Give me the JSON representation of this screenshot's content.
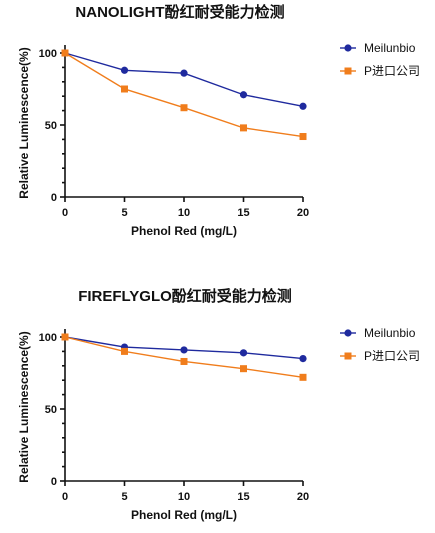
{
  "chart_data": [
    {
      "type": "line",
      "title": "NANOLIGHT酚红耐受能力检测",
      "xlabel": "Phenol Red (mg/L)",
      "ylabel": "Relative Luminescence(%)",
      "x": [
        0,
        5,
        10,
        15,
        20
      ],
      "xlim": [
        0,
        20
      ],
      "ylim": [
        0,
        100
      ],
      "xticks": [
        "0",
        "5",
        "10",
        "15",
        "20"
      ],
      "yticks": [
        "0",
        "50",
        "100"
      ],
      "grid": false,
      "legend_position": "right",
      "series": [
        {
          "name": "Meilunbio",
          "values": [
            100,
            88,
            86,
            71,
            63
          ],
          "color": "#1f2a9e",
          "marker": "circle"
        },
        {
          "name": "P进口公司",
          "values": [
            100,
            75,
            62,
            48,
            42
          ],
          "color": "#f07d1c",
          "marker": "square"
        }
      ]
    },
    {
      "type": "line",
      "title": "FIREFLYGLO酚红耐受能力检测",
      "xlabel": "Phenol Red (mg/L)",
      "ylabel": "Relative Luminescence(%)",
      "x": [
        0,
        5,
        10,
        15,
        20
      ],
      "xlim": [
        0,
        20
      ],
      "ylim": [
        0,
        100
      ],
      "xticks": [
        "0",
        "5",
        "10",
        "15",
        "20"
      ],
      "yticks": [
        "0",
        "50",
        "100"
      ],
      "grid": false,
      "legend_position": "right",
      "series": [
        {
          "name": "Meilunbio",
          "values": [
            100,
            93,
            91,
            89,
            85
          ],
          "color": "#1f2a9e",
          "marker": "circle"
        },
        {
          "name": "P进口公司",
          "values": [
            100,
            90,
            83,
            78,
            72
          ],
          "color": "#f07d1c",
          "marker": "square"
        }
      ]
    }
  ]
}
